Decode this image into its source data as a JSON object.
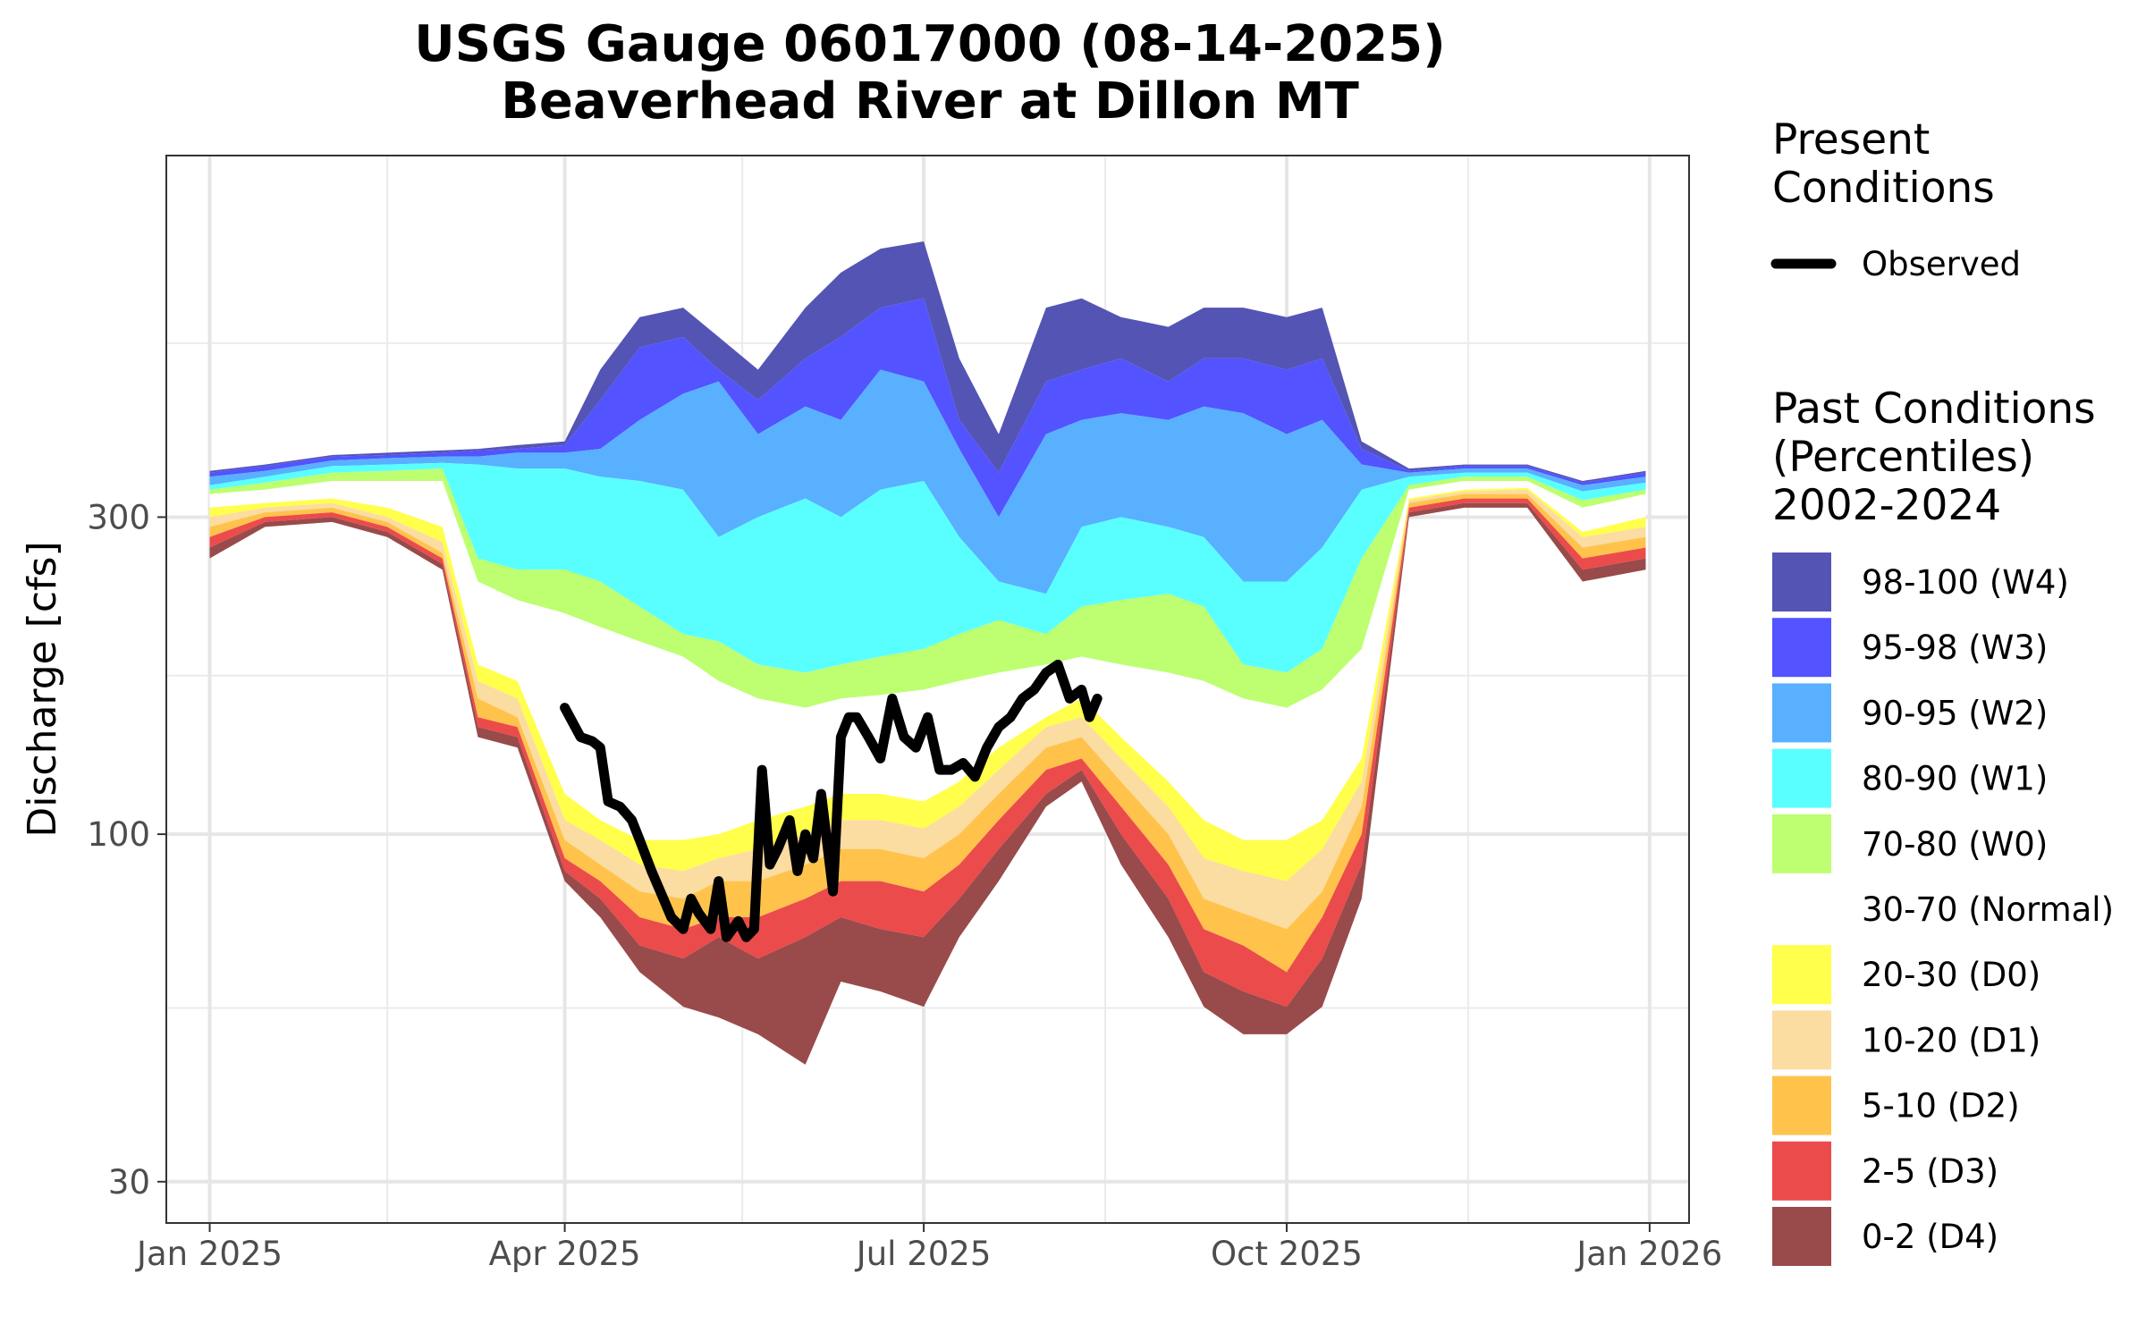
{
  "chart_data": {
    "type": "area",
    "title": "USGS Gauge 06017000 (08-14-2025)",
    "subtitle": "Beaverhead River at Dillon MT",
    "xlabel": "",
    "ylabel": "Discharge [cfs]",
    "y_scale": "log",
    "ylim": [
      26,
      1050
    ],
    "xlim": [
      "2024-12-21",
      "2026-01-11"
    ],
    "grid": true,
    "legend_position": "right",
    "x_ticks": [
      {
        "date": "2025-01-01",
        "label": "Jan 2025"
      },
      {
        "date": "2025-04-01",
        "label": "Apr 2025"
      },
      {
        "date": "2025-07-01",
        "label": "Jul 2025"
      },
      {
        "date": "2025-10-01",
        "label": "Oct 2025"
      },
      {
        "date": "2026-01-01",
        "label": "Jan 2026"
      }
    ],
    "x_minor_ticks": [
      "2025-02-15",
      "2025-05-16",
      "2025-08-16",
      "2025-11-16"
    ],
    "y_ticks": [
      {
        "value": 30,
        "label": "30"
      },
      {
        "value": 100,
        "label": "100"
      },
      {
        "value": 300,
        "label": "300"
      }
    ],
    "y_minor_ticks": [
      54.77,
      173.2,
      548
    ],
    "legend": {
      "present_title": "Present\nConditions",
      "observed_label": "Observed",
      "past_title": "Past Conditions\n(Percentiles)\n2002-2024"
    },
    "bands": [
      {
        "name": "98-100 (W4)",
        "color": "#5454b5"
      },
      {
        "name": "95-98 (W3)",
        "color": "#5353ff"
      },
      {
        "name": "90-95 (W2)",
        "color": "#58b0ff"
      },
      {
        "name": "80-90 (W1)",
        "color": "#59ffff"
      },
      {
        "name": "70-80 (W0)",
        "color": "#bdff70"
      },
      {
        "name": "30-70 (Normal)",
        "color": "#ffffff"
      },
      {
        "name": "20-30 (D0)",
        "color": "#ffff4c"
      },
      {
        "name": "10-20 (D1)",
        "color": "#fbdca1"
      },
      {
        "name": "5-10 (D2)",
        "color": "#ffc34c"
      },
      {
        "name": "2-5 (D3)",
        "color": "#ec4b4b"
      },
      {
        "name": "0-2 (D4)",
        "color": "#994a4a"
      }
    ],
    "percentile_dates": [
      "2025-01-01",
      "2025-01-15",
      "2025-02-01",
      "2025-02-15",
      "2025-03-01",
      "2025-03-10",
      "2025-03-20",
      "2025-04-01",
      "2025-04-10",
      "2025-04-20",
      "2025-05-01",
      "2025-05-10",
      "2025-05-20",
      "2025-06-01",
      "2025-06-10",
      "2025-06-20",
      "2025-07-01",
      "2025-07-10",
      "2025-07-20",
      "2025-08-01",
      "2025-08-10",
      "2025-08-20",
      "2025-09-01",
      "2025-09-10",
      "2025-09-20",
      "2025-10-01",
      "2025-10-10",
      "2025-10-20",
      "2025-11-01",
      "2025-11-15",
      "2025-12-01",
      "2025-12-15",
      "2025-12-31"
    ],
    "percentiles": {
      "p0": [
        260,
        290,
        295,
        280,
        250,
        140,
        135,
        85,
        75,
        62,
        55,
        53,
        50,
        45,
        60,
        58,
        55,
        70,
        85,
        110,
        120,
        90,
        70,
        55,
        50,
        50,
        55,
        80,
        300,
        310,
        310,
        240,
        250
      ],
      "p2": [
        270,
        295,
        300,
        285,
        255,
        145,
        140,
        88,
        80,
        68,
        65,
        70,
        65,
        70,
        75,
        72,
        70,
        80,
        95,
        115,
        125,
        100,
        80,
        62,
        58,
        55,
        65,
        90,
        305,
        315,
        315,
        250,
        260
      ],
      "p5": [
        280,
        300,
        305,
        290,
        260,
        150,
        145,
        92,
        85,
        75,
        72,
        75,
        75,
        80,
        85,
        85,
        82,
        90,
        105,
        125,
        130,
        110,
        90,
        72,
        68,
        62,
        75,
        100,
        310,
        320,
        320,
        260,
        270
      ],
      "p10": [
        290,
        305,
        310,
        295,
        265,
        160,
        150,
        98,
        90,
        82,
        80,
        85,
        85,
        90,
        95,
        95,
        92,
        100,
        115,
        135,
        140,
        120,
        100,
        80,
        76,
        72,
        82,
        110,
        315,
        325,
        325,
        270,
        280
      ],
      "p20": [
        300,
        310,
        315,
        300,
        275,
        170,
        160,
        105,
        98,
        90,
        88,
        92,
        95,
        100,
        105,
        105,
        102,
        110,
        125,
        145,
        150,
        130,
        110,
        92,
        88,
        85,
        95,
        120,
        318,
        328,
        330,
        280,
        290
      ],
      "p30": [
        310,
        315,
        320,
        310,
        290,
        180,
        170,
        115,
        105,
        98,
        98,
        100,
        105,
        110,
        115,
        115,
        112,
        120,
        135,
        150,
        160,
        140,
        120,
        105,
        98,
        98,
        105,
        130,
        320,
        330,
        332,
        285,
        300
      ],
      "p70": [
        325,
        330,
        340,
        340,
        340,
        240,
        225,
        215,
        205,
        195,
        185,
        170,
        160,
        155,
        160,
        162,
        165,
        170,
        175,
        180,
        185,
        180,
        175,
        170,
        160,
        155,
        165,
        190,
        330,
        340,
        340,
        310,
        325
      ],
      "p80": [
        330,
        338,
        350,
        352,
        355,
        260,
        250,
        250,
        240,
        220,
        200,
        195,
        180,
        175,
        180,
        185,
        190,
        200,
        210,
        200,
        220,
        225,
        230,
        220,
        180,
        175,
        190,
        260,
        335,
        345,
        345,
        318,
        330
      ],
      "p90": [
        335,
        345,
        358,
        360,
        362,
        360,
        355,
        355,
        345,
        340,
        330,
        280,
        300,
        320,
        300,
        330,
        340,
        280,
        240,
        230,
        290,
        300,
        290,
        280,
        240,
        240,
        270,
        330,
        345,
        350,
        350,
        328,
        338
      ],
      "p95": [
        345,
        352,
        365,
        368,
        370,
        370,
        375,
        375,
        380,
        420,
        460,
        480,
        400,
        440,
        420,
        500,
        480,
        380,
        300,
        400,
        420,
        430,
        420,
        440,
        430,
        400,
        420,
        360,
        350,
        355,
        355,
        335,
        345
      ],
      "p98": [
        350,
        358,
        370,
        372,
        375,
        378,
        380,
        385,
        450,
        540,
        560,
        500,
        450,
        520,
        560,
        620,
        640,
        420,
        350,
        480,
        500,
        520,
        480,
        520,
        520,
        500,
        520,
        380,
        352,
        358,
        358,
        338,
        350
      ],
      "p100": [
        352,
        360,
        372,
        375,
        378,
        380,
        385,
        390,
        500,
        600,
        620,
        560,
        500,
        620,
        700,
        760,
        780,
        520,
        400,
        620,
        640,
        600,
        580,
        620,
        620,
        600,
        620,
        390,
        355,
        360,
        360,
        340,
        352
      ]
    },
    "observed": {
      "dates": [
        "2025-04-01",
        "2025-04-05",
        "2025-04-08",
        "2025-04-10",
        "2025-04-12",
        "2025-04-15",
        "2025-04-18",
        "2025-04-20",
        "2025-04-23",
        "2025-04-26",
        "2025-04-28",
        "2025-05-01",
        "2025-05-03",
        "2025-05-05",
        "2025-05-08",
        "2025-05-10",
        "2025-05-12",
        "2025-05-15",
        "2025-05-17",
        "2025-05-19",
        "2025-05-21",
        "2025-05-23",
        "2025-05-25",
        "2025-05-28",
        "2025-05-30",
        "2025-06-01",
        "2025-06-03",
        "2025-06-05",
        "2025-06-08",
        "2025-06-10",
        "2025-06-12",
        "2025-06-14",
        "2025-06-17",
        "2025-06-20",
        "2025-06-23",
        "2025-06-26",
        "2025-06-29",
        "2025-07-02",
        "2025-07-05",
        "2025-07-08",
        "2025-07-11",
        "2025-07-14",
        "2025-07-17",
        "2025-07-20",
        "2025-07-23",
        "2025-07-26",
        "2025-07-29",
        "2025-08-01",
        "2025-08-04",
        "2025-08-07",
        "2025-08-10",
        "2025-08-12",
        "2025-08-14"
      ],
      "values": [
        155,
        140,
        138,
        135,
        112,
        110,
        105,
        98,
        88,
        80,
        75,
        72,
        80,
        76,
        72,
        85,
        70,
        74,
        70,
        72,
        125,
        90,
        95,
        105,
        88,
        100,
        92,
        115,
        82,
        140,
        150,
        150,
        140,
        130,
        160,
        140,
        135,
        150,
        125,
        125,
        128,
        122,
        135,
        145,
        150,
        160,
        165,
        175,
        180,
        160,
        165,
        150,
        160
      ]
    }
  }
}
